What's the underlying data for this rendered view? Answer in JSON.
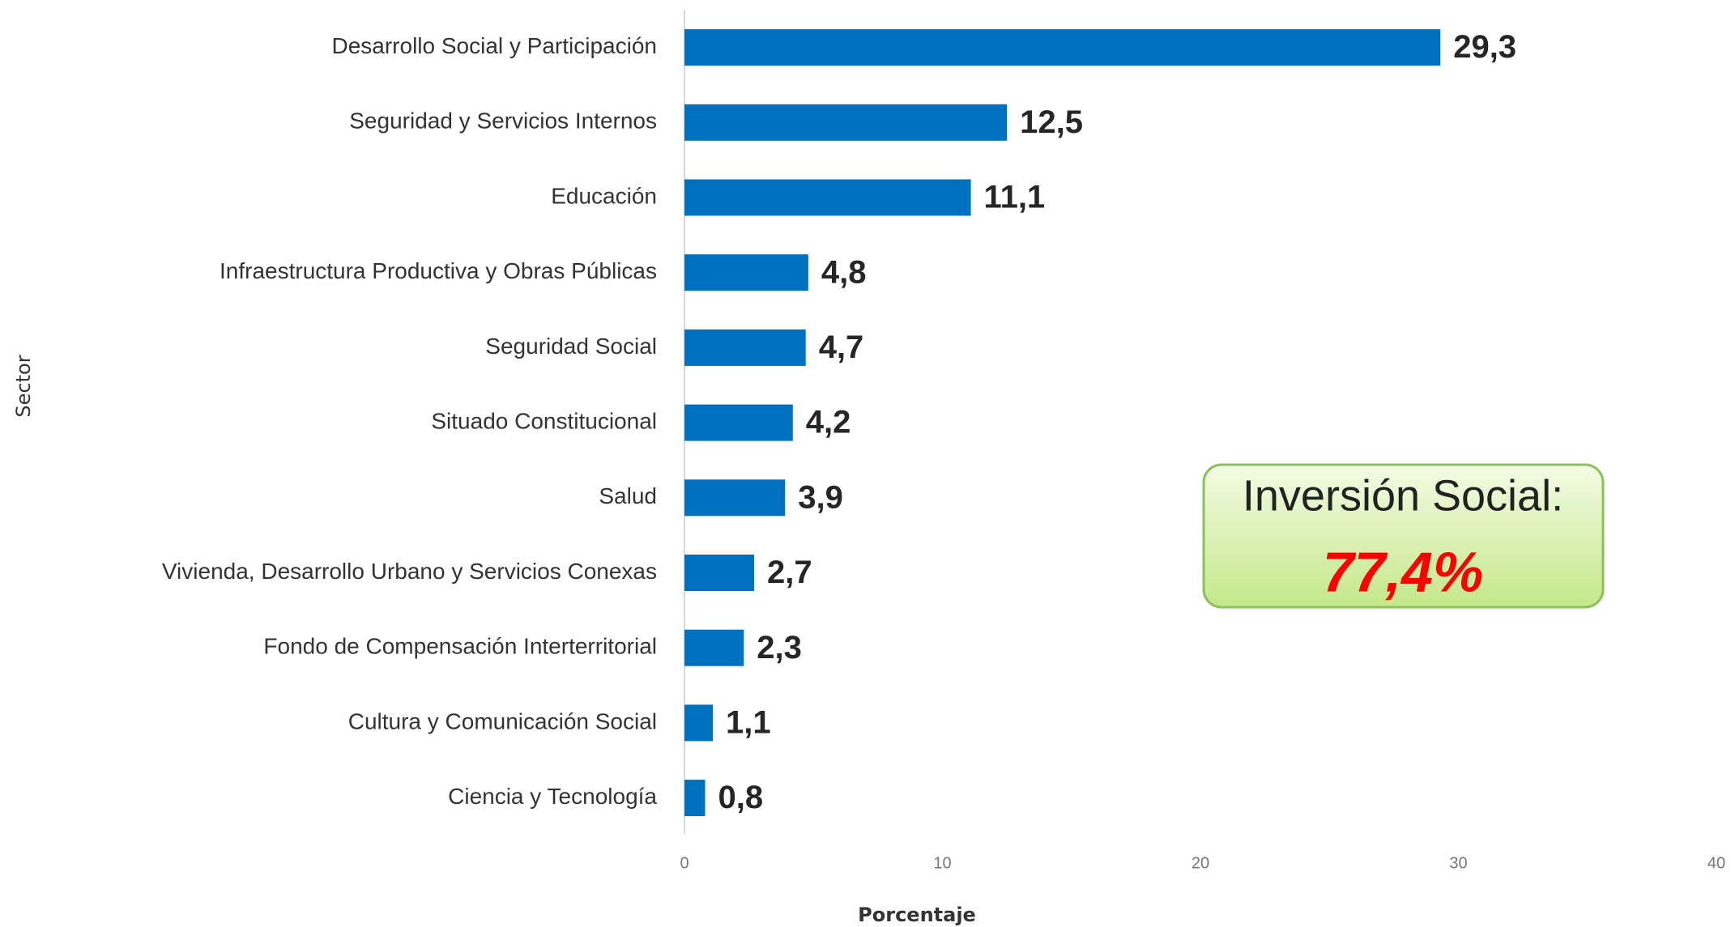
{
  "chart_data": {
    "type": "bar",
    "orientation": "horizontal",
    "categories": [
      "Desarrollo Social y Participación",
      "Seguridad y Servicios Internos",
      "Educación",
      "Infraestructura Productiva y Obras Públicas",
      "Seguridad Social",
      "Situado Constitucional",
      "Salud",
      "Vivienda, Desarrollo Urbano y Servicios Conexas",
      "Fondo de Compensación Interterritorial",
      "Cultura y Comunicación Social",
      "Ciencia y Tecnología"
    ],
    "values": [
      29.3,
      12.5,
      11.1,
      4.8,
      4.7,
      4.2,
      3.9,
      2.7,
      2.3,
      1.1,
      0.8
    ],
    "value_labels": [
      "29,3",
      "12,5",
      "11,1",
      "4,8",
      "4,7",
      "4,2",
      "3,9",
      "2,7",
      "2,3",
      "1,1",
      "0,8"
    ],
    "color": "#0070c0",
    "xlim": [
      0,
      40
    ],
    "xticks": [
      0,
      10,
      20,
      30,
      40
    ],
    "xlabel": "Porcentaje",
    "ylabel": "Sector",
    "annotation": {
      "title": "Inversión Social:",
      "text": "77,4%"
    }
  }
}
